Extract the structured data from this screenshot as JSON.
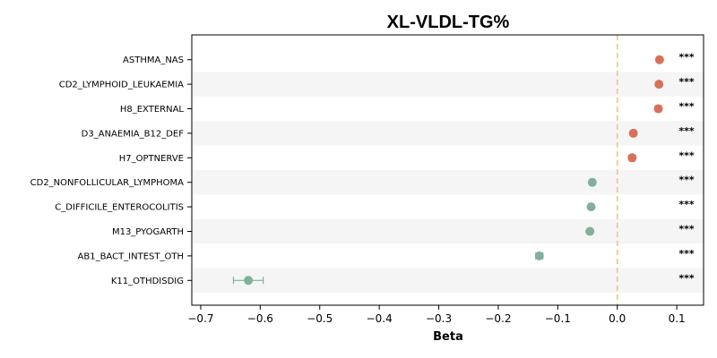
{
  "chart_data": {
    "type": "scatter",
    "title": "XL-VLDL-TG%",
    "xlabel": "Beta",
    "ylabel": "",
    "xlim": [
      -0.715,
      0.145
    ],
    "xticks": [
      -0.7,
      -0.6,
      -0.5,
      -0.4,
      -0.3,
      -0.2,
      -0.1,
      0.0,
      0.1
    ],
    "xtick_labels": [
      "−0.7",
      "−0.6",
      "−0.5",
      "−0.4",
      "−0.3",
      "−0.2",
      "−0.1",
      "0.0",
      "0.1"
    ],
    "reference_line": 0.0,
    "grid": false,
    "categories": [
      "ASTHMA_NAS",
      "CD2_LYMPHOID_LEUKAEMIA",
      "H8_EXTERNAL",
      "D3_ANAEMIA_B12_DEF",
      "H7_OPTNERVE",
      "CD2_NONFOLLICULAR_LYMPHOMA",
      "C_DIFFICILE_ENTEROCOLITIS",
      "M13_PYOGARTH",
      "AB1_BACT_INTEST_OTH",
      "K11_OTHDISDIG"
    ],
    "values": [
      0.071,
      0.07,
      0.069,
      0.027,
      0.025,
      -0.042,
      -0.044,
      -0.046,
      -0.131,
      -0.62
    ],
    "ci_low": [
      0.068,
      0.066,
      0.064,
      0.023,
      0.02,
      -0.046,
      -0.048,
      -0.05,
      -0.137,
      -0.645
    ],
    "ci_high": [
      0.074,
      0.074,
      0.074,
      0.031,
      0.03,
      -0.038,
      -0.04,
      -0.042,
      -0.125,
      -0.595
    ],
    "significance": [
      "***",
      "***",
      "***",
      "***",
      "***",
      "***",
      "***",
      "***",
      "***",
      "***"
    ],
    "colors": {
      "positive": "#d9705a",
      "negative": "#82b09a",
      "reference": "#f0c080",
      "band": "#f5f5f5"
    }
  }
}
